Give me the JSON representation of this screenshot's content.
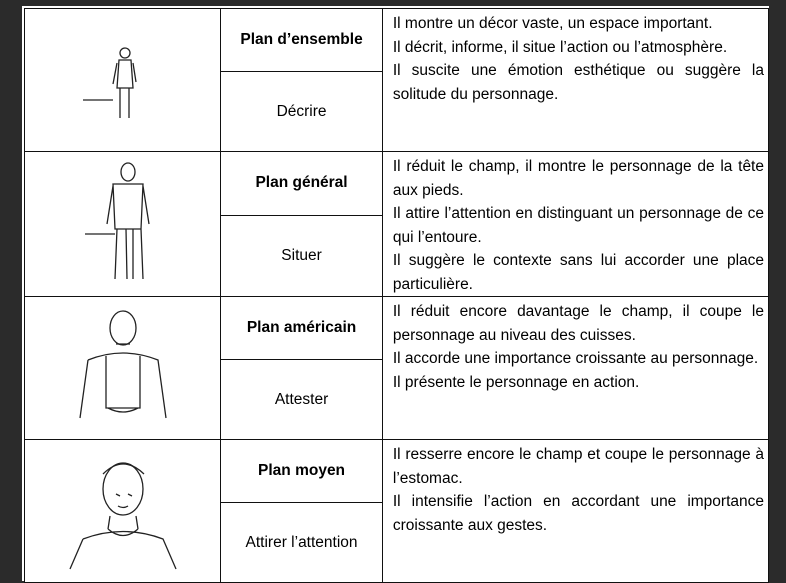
{
  "table": {
    "rows": [
      {
        "shot": "Plan d’ensemble",
        "purpose": "Décrire",
        "description": [
          "Il montre un décor vaste, un espace important.",
          "Il décrit, informe, il situe l’action ou l’atmosphère.",
          "Il suscite une émotion esthétique ou suggère la solitude du personnage."
        ]
      },
      {
        "shot": "Plan général",
        "purpose": "Situer",
        "description": [
          "Il réduit le champ, il montre le personnage de la tête aux pieds.",
          "Il attire l’attention en distinguant un personnage de ce qui l’entoure.",
          "Il suggère le contexte sans lui accorder une place particulière."
        ]
      },
      {
        "shot": "Plan américain",
        "purpose": "Attester",
        "description": [
          "Il réduit encore davantage le champ, il coupe le personnage au niveau des cuisses.",
          "Il accorde une importance croissante au personnage.",
          "Il présente le personnage en action."
        ]
      },
      {
        "shot": "Plan moyen",
        "purpose": "Attirer l’attention",
        "description": [
          "Il resserre encore le champ et coupe le personnage à l’estomac.",
          "Il intensifie l’action en accordant une importance croissante aux gestes."
        ]
      }
    ]
  }
}
